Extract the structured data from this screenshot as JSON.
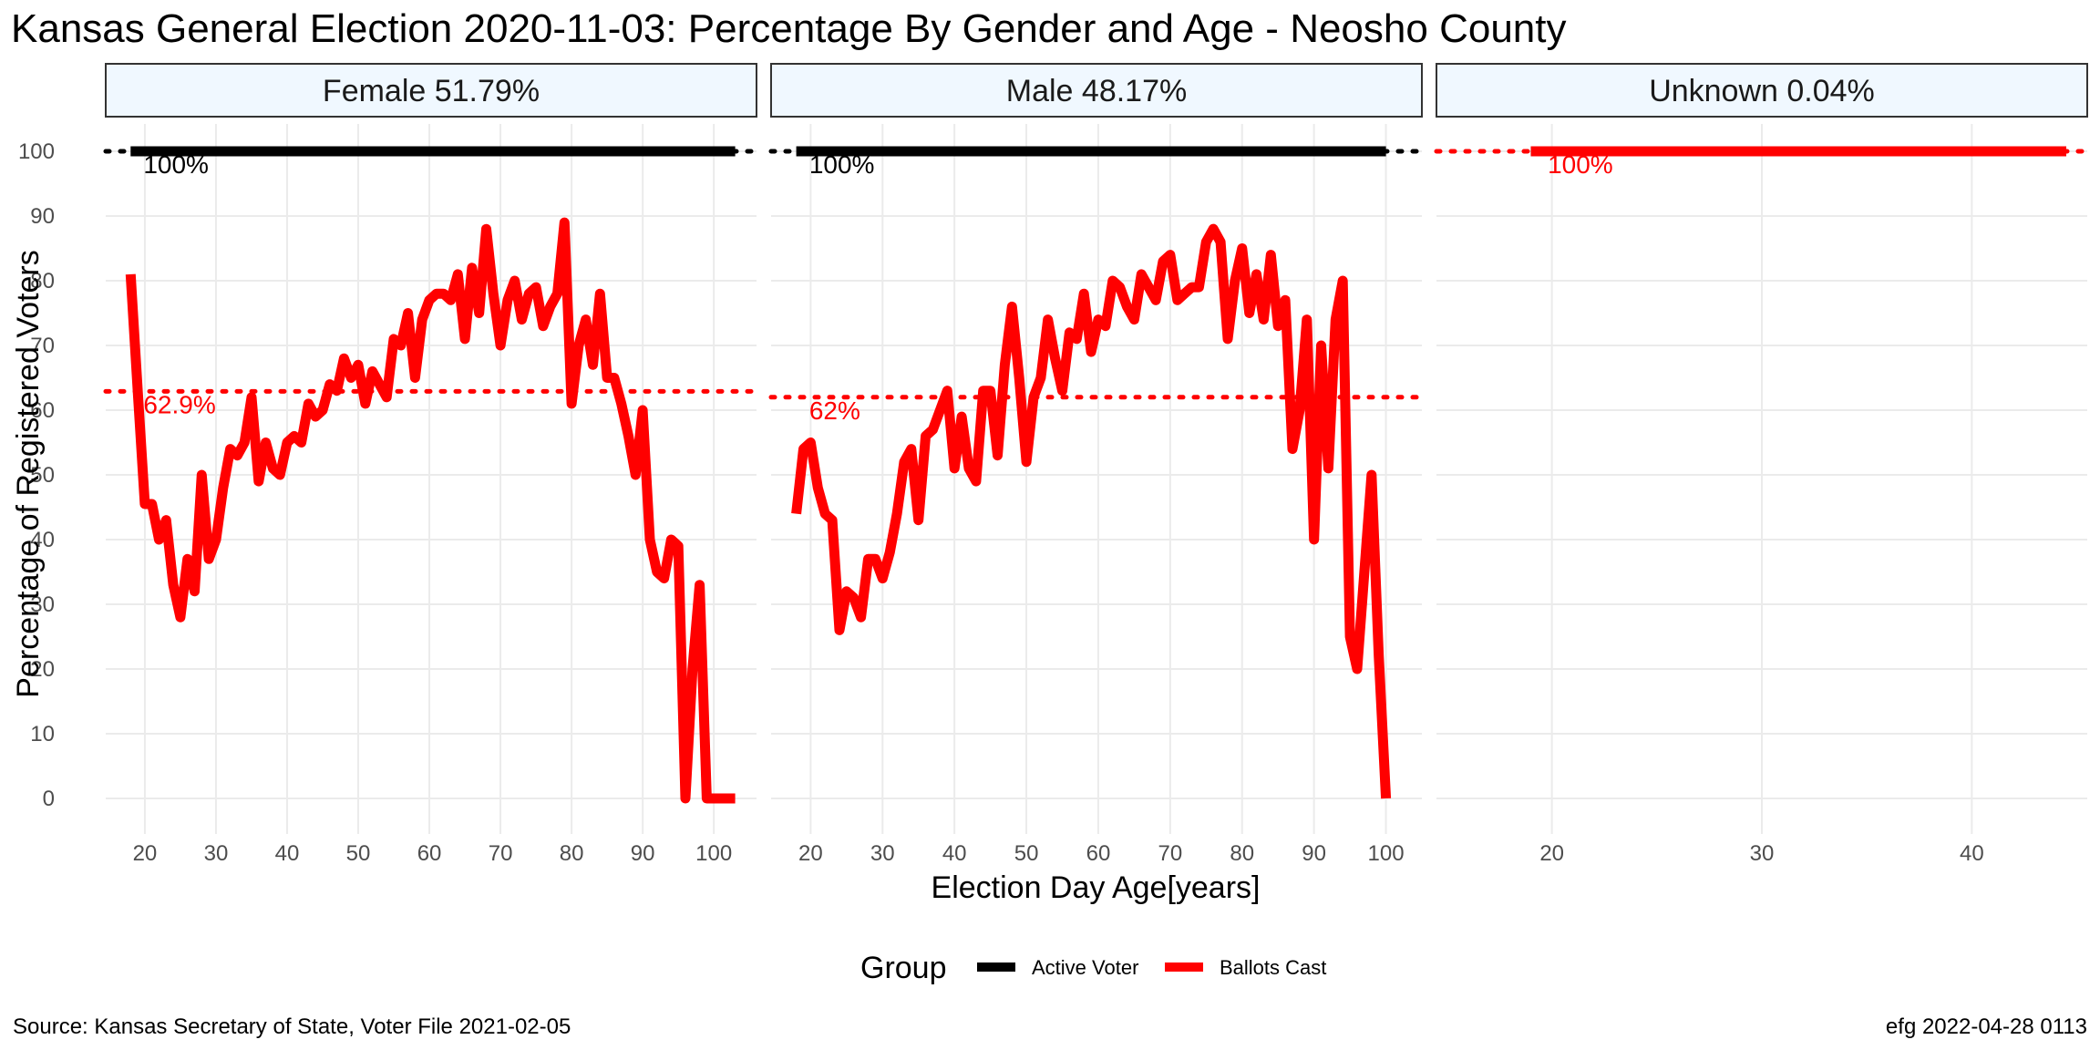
{
  "title": "Kansas General Election 2020-11-03:  Percentage By Gender and Age - Neosho County",
  "caption_left": "Source:  Kansas Secretary of State, Voter File  2021-02-05",
  "caption_right": "efg 2022-04-28 0113",
  "colors": {
    "active": "#000000",
    "ballots": "#ff0000",
    "strip_fill": "#f0f8ff",
    "strip_border": "#333333"
  },
  "chart_data": {
    "type": "line",
    "xlabel": "Election Day Age[years]",
    "ylabel": "Percentage of Registered Voters",
    "ylim": [
      0,
      100
    ],
    "yticks": [
      0,
      10,
      20,
      30,
      40,
      50,
      60,
      70,
      80,
      90,
      100
    ],
    "legend": {
      "title": "Group",
      "position": "bottom",
      "entries": [
        {
          "name": "Active Voter",
          "color": "#000000"
        },
        {
          "name": "Ballots Cast",
          "color": "#ff0000"
        }
      ]
    },
    "panels": [
      {
        "strip": "Female 51.79%",
        "xlim": [
          14.5,
          106
        ],
        "xticks": [
          20,
          30,
          40,
          50,
          60,
          70,
          80,
          90,
          100
        ],
        "ref_lines": [
          {
            "value": 100,
            "label": "100%",
            "color": "#000000"
          },
          {
            "value": 62.9,
            "label": "62.9%",
            "color": "#ff0000"
          }
        ],
        "series": [
          {
            "name": "Active Voter",
            "x": [
              18,
              103
            ],
            "y": [
              100,
              100
            ]
          },
          {
            "name": "Ballots Cast",
            "x": [
              18,
              19,
              20,
              21,
              22,
              23,
              24,
              25,
              26,
              27,
              28,
              29,
              30,
              31,
              32,
              33,
              34,
              35,
              36,
              37,
              38,
              39,
              40,
              41,
              42,
              43,
              44,
              45,
              46,
              47,
              48,
              49,
              50,
              51,
              52,
              53,
              54,
              55,
              56,
              57,
              58,
              59,
              60,
              61,
              62,
              63,
              64,
              65,
              66,
              67,
              68,
              69,
              70,
              71,
              72,
              73,
              74,
              75,
              76,
              77,
              78,
              79,
              80,
              81,
              82,
              83,
              84,
              85,
              86,
              87,
              88,
              89,
              90,
              91,
              92,
              93,
              94,
              95,
              96,
              97,
              98,
              99,
              100,
              101,
              102,
              103
            ],
            "y": [
              81,
              63,
              45.5,
              45.5,
              40,
              43,
              33,
              28,
              37,
              32,
              50,
              37,
              40,
              48,
              54,
              53,
              55,
              62,
              49,
              55,
              51,
              50,
              55,
              56,
              55,
              61,
              59,
              60,
              64,
              63,
              68,
              65,
              67,
              61,
              66,
              64,
              62,
              71,
              70,
              75,
              65,
              74,
              77,
              78,
              78,
              77,
              81,
              71,
              82,
              75,
              88,
              78,
              70,
              77,
              80,
              74,
              78,
              79,
              73,
              76,
              78,
              89,
              61,
              70,
              74,
              67,
              78,
              65,
              65,
              61,
              56,
              50,
              60,
              40,
              35,
              34,
              40,
              39,
              0,
              20,
              33,
              0,
              0,
              0,
              0,
              0
            ]
          }
        ]
      },
      {
        "strip": "Male 48.17%",
        "xlim": [
          14.5,
          105
        ],
        "xticks": [
          20,
          30,
          40,
          50,
          60,
          70,
          80,
          90,
          100
        ],
        "ref_lines": [
          {
            "value": 100,
            "label": "100%",
            "color": "#000000"
          },
          {
            "value": 62,
            "label": "62%",
            "color": "#ff0000"
          }
        ],
        "series": [
          {
            "name": "Active Voter",
            "x": [
              18,
              100
            ],
            "y": [
              100,
              100
            ]
          },
          {
            "name": "Ballots Cast",
            "x": [
              18,
              19,
              20,
              21,
              22,
              23,
              24,
              25,
              26,
              27,
              28,
              29,
              30,
              31,
              32,
              33,
              34,
              35,
              36,
              37,
              38,
              39,
              40,
              41,
              42,
              43,
              44,
              45,
              46,
              47,
              48,
              49,
              50,
              51,
              52,
              53,
              54,
              55,
              56,
              57,
              58,
              59,
              60,
              61,
              62,
              63,
              64,
              65,
              66,
              67,
              68,
              69,
              70,
              71,
              72,
              73,
              74,
              75,
              76,
              77,
              78,
              79,
              80,
              81,
              82,
              83,
              84,
              85,
              86,
              87,
              88,
              89,
              90,
              91,
              92,
              93,
              94,
              95,
              96,
              97,
              98,
              99,
              100
            ],
            "y": [
              44,
              54,
              55,
              48,
              44,
              43,
              26,
              32,
              31,
              28,
              37,
              37,
              34,
              38,
              44,
              52,
              54,
              43,
              56,
              57,
              60,
              63,
              51,
              59,
              51,
              49,
              63,
              63,
              53,
              67,
              76,
              65,
              52,
              62,
              65,
              74,
              68,
              63,
              72,
              71,
              78,
              69,
              74,
              73,
              80,
              79,
              76,
              74,
              81,
              79,
              77,
              83,
              84,
              77,
              78,
              79,
              79,
              86,
              88,
              86,
              71,
              80,
              85,
              75,
              81,
              74,
              84,
              73,
              77,
              54,
              60,
              74,
              40,
              70,
              51,
              74,
              80,
              25,
              20,
              35,
              50,
              22,
              0
            ]
          }
        ]
      },
      {
        "strip": "Unknown 0.04%",
        "xlim": [
          14.5,
          45.5
        ],
        "xticks": [
          20,
          30,
          40
        ],
        "ref_lines": [
          {
            "value": 100,
            "label": "100%",
            "color": "#ff0000"
          }
        ],
        "series": [
          {
            "name": "Active Voter",
            "x": [
              19,
              44.5
            ],
            "y": [
              100,
              100
            ]
          },
          {
            "name": "Ballots Cast",
            "x": [
              19,
              44.5
            ],
            "y": [
              100,
              100
            ]
          }
        ]
      }
    ]
  }
}
